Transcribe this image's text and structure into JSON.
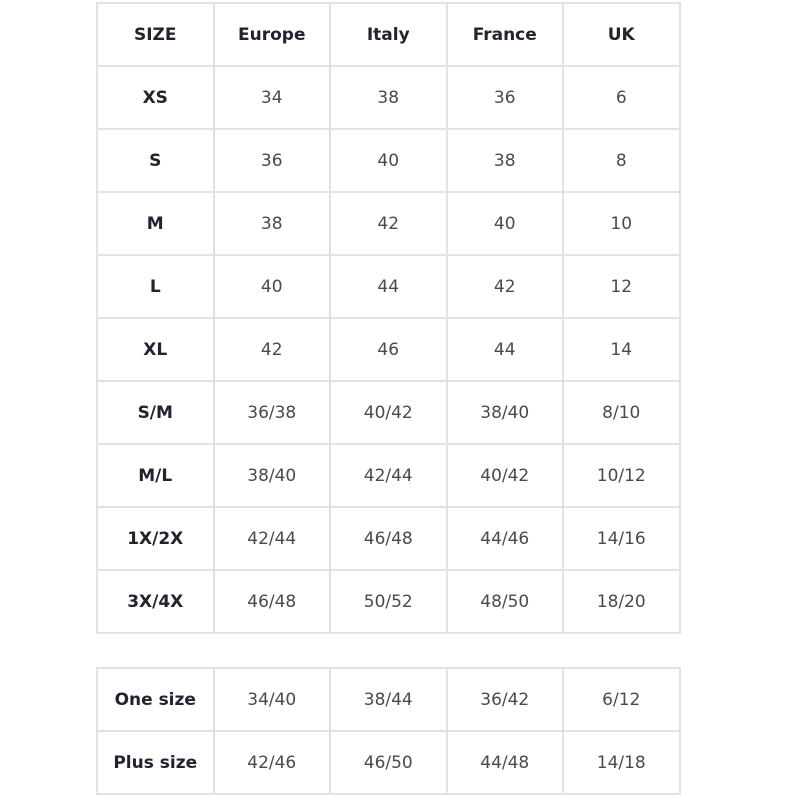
{
  "size_table": {
    "headers": [
      "SIZE",
      "Europe",
      "Italy",
      "France",
      "UK"
    ],
    "rows": [
      [
        "XS",
        "34",
        "38",
        "36",
        "6"
      ],
      [
        "S",
        "36",
        "40",
        "38",
        "8"
      ],
      [
        "M",
        "38",
        "42",
        "40",
        "10"
      ],
      [
        "L",
        "40",
        "44",
        "42",
        "12"
      ],
      [
        "XL",
        "42",
        "46",
        "44",
        "14"
      ],
      [
        "S/M",
        "36/38",
        "40/42",
        "38/40",
        "8/10"
      ],
      [
        "M/L",
        "38/40",
        "42/44",
        "40/42",
        "10/12"
      ],
      [
        "1X/2X",
        "42/44",
        "46/48",
        "44/46",
        "14/16"
      ],
      [
        "3X/4X",
        "46/48",
        "50/52",
        "48/50",
        "18/20"
      ]
    ]
  },
  "extra_table": {
    "rows": [
      [
        "One size",
        "34/40",
        "38/44",
        "36/42",
        "6/12"
      ],
      [
        "Plus size",
        "42/46",
        "46/50",
        "44/48",
        "14/18"
      ]
    ]
  }
}
